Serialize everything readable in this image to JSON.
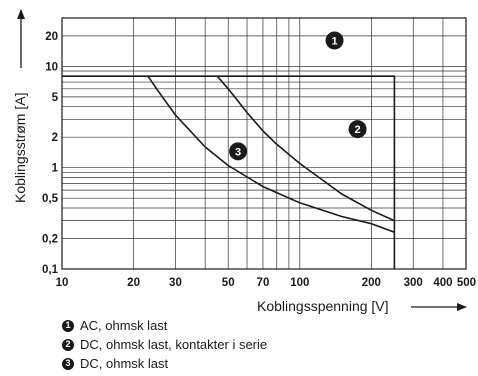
{
  "chart_data": {
    "type": "line",
    "xscale": "log",
    "yscale": "log",
    "xlim": [
      10,
      500
    ],
    "ylim": [
      0.1,
      30
    ],
    "xlabel": "Koblingsspenning [V]",
    "ylabel": "Koblingsstrøm [A]",
    "xticks": [
      10,
      20,
      30,
      50,
      70,
      100,
      200,
      300,
      400,
      500
    ],
    "xtick_labels": [
      "10",
      "20",
      "30",
      "50",
      "70",
      "100",
      "200",
      "300",
      "400",
      "500"
    ],
    "yticks": [
      0.1,
      0.2,
      0.5,
      1,
      2,
      5,
      10,
      20
    ],
    "ytick_labels": [
      "0,1",
      "0,2",
      "0,5",
      "1",
      "2",
      "5",
      "10",
      "20"
    ],
    "grid": true,
    "series": [
      {
        "name": "AC, ohmsk last",
        "marker": "1",
        "x": [
          10,
          250,
          250
        ],
        "y": [
          8,
          8,
          0.1
        ]
      },
      {
        "name": "DC, ohmsk last, kontakter i serie",
        "marker": "2",
        "x": [
          45,
          50,
          60,
          70,
          80,
          100,
          150,
          200,
          250
        ],
        "y": [
          8,
          6,
          3.5,
          2.3,
          1.7,
          1.1,
          0.55,
          0.38,
          0.3
        ]
      },
      {
        "name": "DC, ohmsk last",
        "marker": "3",
        "x": [
          23,
          25,
          30,
          40,
          50,
          70,
          100,
          150,
          200,
          250
        ],
        "y": [
          8,
          6,
          3.3,
          1.6,
          1.05,
          0.65,
          0.45,
          0.33,
          0.28,
          0.23
        ]
      }
    ],
    "legend": [
      {
        "marker": "1",
        "label": "AC, ohmsk last"
      },
      {
        "marker": "2",
        "label": "DC, ohmsk last, kontakter i serie"
      },
      {
        "marker": "3",
        "label": "DC, ohmsk last"
      }
    ]
  }
}
